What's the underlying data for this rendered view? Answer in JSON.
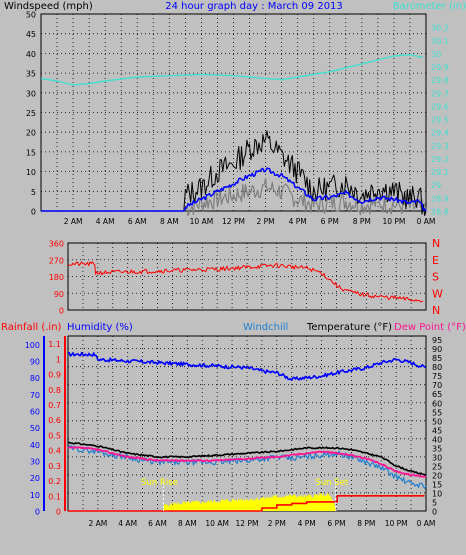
{
  "chart_data": [
    {
      "type": "line",
      "title": "24 hour graph day : March 09 2013",
      "ylabel": "Windspeed (mph)",
      "y2label": "Barometer (in)",
      "ylim": [
        0,
        50
      ],
      "y2lim": [
        28.8,
        30.3
      ],
      "yticks": [
        "0",
        "5",
        "10",
        "15",
        "20",
        "25",
        "30",
        "35",
        "40",
        "45",
        "50"
      ],
      "y2ticks": [
        "28.8",
        "28.9",
        "29",
        "29.1",
        "29.2",
        "29.3",
        "29.4",
        "29.5",
        "29.6",
        "29.7",
        "29.8",
        "29.9",
        "30",
        "30.1",
        "30.2"
      ],
      "xlim": [
        0,
        24
      ],
      "xticks": [
        {
          "h": 2,
          "label": "2 AM"
        },
        {
          "h": 4,
          "label": "4 AM"
        },
        {
          "h": 6,
          "label": "6 AM"
        },
        {
          "h": 8,
          "label": "8 AM"
        },
        {
          "h": 10,
          "label": "10 AM"
        },
        {
          "h": 12,
          "label": "12 PM"
        },
        {
          "h": 14,
          "label": "2 PM"
        },
        {
          "h": 16,
          "label": "4 PM"
        },
        {
          "h": 18,
          "label": "6 PM"
        },
        {
          "h": 20,
          "label": "8 PM"
        },
        {
          "h": 22,
          "label": "10 PM"
        },
        {
          "h": 24,
          "label": "0 AM"
        }
      ],
      "grid": true,
      "colors": {
        "gust": "#000000",
        "average": "#808080",
        "speed": "#0000ff",
        "barometer": "#40e0d0"
      },
      "series": [
        {
          "key": "barometer",
          "axis": "right",
          "x": [
            0,
            1,
            2,
            3,
            4,
            6,
            8,
            10,
            12,
            14,
            15,
            16,
            18,
            20,
            22,
            23,
            23.8
          ],
          "values": [
            29.81,
            29.79,
            29.76,
            29.77,
            29.79,
            29.82,
            29.83,
            29.84,
            29.83,
            29.81,
            29.8,
            29.82,
            29.86,
            29.92,
            29.98,
            29.99,
            29.97
          ]
        },
        {
          "key": "gust",
          "axis": "left",
          "x": [
            0,
            8.9,
            9.0,
            10,
            11,
            12,
            13,
            14,
            15,
            16,
            17,
            18,
            19,
            20,
            21,
            22,
            23,
            23.5,
            24
          ],
          "values": [
            0,
            0,
            4,
            6,
            10,
            12,
            16,
            18,
            14,
            10,
            5,
            6,
            7,
            4,
            6,
            5,
            3,
            4,
            0
          ]
        },
        {
          "key": "speed",
          "axis": "left",
          "x": [
            0,
            8.9,
            9.0,
            10,
            11,
            12,
            13,
            14,
            15,
            16,
            17,
            18,
            19,
            20,
            21,
            22,
            23,
            23.5,
            24
          ],
          "values": [
            0,
            0,
            1,
            3,
            5,
            7,
            9,
            10.5,
            9,
            6,
            3,
            3.5,
            4.5,
            2.5,
            3.5,
            3,
            2,
            2.5,
            0
          ]
        },
        {
          "key": "average",
          "axis": "left",
          "x": [
            0,
            8.9,
            9.0,
            10,
            11,
            12,
            13,
            14,
            15,
            16,
            17,
            18,
            19,
            20,
            21,
            22,
            23,
            23.5,
            24
          ],
          "values": [
            0,
            0,
            0.5,
            2,
            3,
            4,
            5,
            6,
            5,
            3,
            1.5,
            2,
            2.5,
            1.5,
            2,
            1.5,
            1,
            1,
            0
          ]
        }
      ]
    },
    {
      "type": "line",
      "ylim": [
        0,
        360
      ],
      "yticks": [
        "0",
        "90",
        "180",
        "270",
        "360"
      ],
      "directions": [
        "N",
        "W",
        "S",
        "E",
        "N"
      ],
      "xlim": [
        0,
        24
      ],
      "grid": true,
      "colors": {
        "direction": "#ff0000"
      },
      "series": [
        {
          "key": "direction",
          "x": [
            0,
            1.8,
            1.85,
            4,
            6,
            8,
            10,
            12,
            14,
            16,
            17,
            17.6,
            18.2,
            19,
            20,
            21,
            22,
            23,
            23.8
          ],
          "values": [
            247,
            247,
            200,
            205,
            210,
            215,
            220,
            230,
            240,
            225,
            200,
            160,
            120,
            95,
            80,
            70,
            65,
            55,
            50
          ]
        }
      ]
    },
    {
      "type": "line",
      "labels": {
        "rainfall": "Rainfall (.in)",
        "humidity": "Humidity (%)",
        "windchill": "Windchill",
        "temperature": "Temperature (°F)",
        "dewpoint": "Dew Point (°F)"
      },
      "humidity_ticks": [
        "0",
        "10",
        "20",
        "30",
        "40",
        "50",
        "60",
        "70",
        "80",
        "90",
        "100"
      ],
      "rain_ticks": [
        "0",
        "0.1",
        "0.2",
        "0.3",
        "0.4",
        "0.5",
        "0.6",
        "0.7",
        "0.8",
        "0.9",
        "1",
        "1.1"
      ],
      "temp_ticks": [
        "0",
        "5",
        "10",
        "15",
        "20",
        "25",
        "30",
        "35",
        "40",
        "45",
        "50",
        "55",
        "60",
        "65",
        "70",
        "75",
        "80",
        "85",
        "90",
        "95"
      ],
      "rain_lim": [
        0,
        1.15
      ],
      "temp_lim": [
        0,
        97
      ],
      "humidity_lim": [
        0,
        105
      ],
      "xlim": [
        0,
        24
      ],
      "grid": true,
      "annotations": [
        {
          "label": "Sun Rise",
          "h": 6.4
        },
        {
          "label": "Sun Set",
          "h": 17.95
        }
      ],
      "colors": {
        "humidity": "#0000ff",
        "temperature": "#000000",
        "windchill": "#2080d0",
        "dewpoint": "#ff1493",
        "rainfall": "#ff0000",
        "solar": "#ffff00",
        "rainfall_label": "#ff0000"
      },
      "series": [
        {
          "key": "humidity",
          "axis": "humidity",
          "x": [
            0,
            1.0,
            1.8,
            2.0,
            4,
            6,
            8,
            10,
            12,
            13,
            14,
            15,
            16,
            17,
            18,
            20,
            21,
            22,
            23,
            24
          ],
          "values": [
            94,
            94,
            94,
            91,
            90,
            89,
            88,
            87,
            86,
            84,
            83,
            79,
            80,
            81,
            83,
            86,
            89,
            91,
            89,
            86
          ]
        },
        {
          "key": "temperature",
          "axis": "temp",
          "x": [
            0,
            1,
            2,
            3,
            4,
            5,
            6,
            8,
            10,
            12,
            14,
            15,
            16,
            17,
            18,
            19,
            20,
            21,
            22,
            23,
            24
          ],
          "values": [
            38,
            37,
            36,
            34,
            32,
            31,
            30,
            30,
            31,
            32,
            33,
            34,
            35,
            35,
            35,
            34,
            32,
            30,
            25,
            22,
            20
          ]
        },
        {
          "key": "windchill",
          "axis": "temp",
          "x": [
            0,
            1,
            2,
            3,
            4,
            5,
            6,
            8,
            10,
            12,
            14,
            15,
            16,
            17,
            18,
            19,
            20,
            21,
            22,
            23,
            24
          ],
          "values": [
            35,
            34,
            33,
            31,
            30,
            28,
            27,
            27,
            27,
            28,
            30,
            29,
            30,
            31,
            32,
            30,
            27,
            24,
            19,
            15,
            14
          ]
        },
        {
          "key": "dewpoint",
          "axis": "temp",
          "x": [
            0,
            1,
            2,
            3,
            4,
            5,
            6,
            8,
            10,
            12,
            14,
            15,
            16,
            17,
            18,
            19,
            20,
            21,
            22,
            23,
            24
          ],
          "values": [
            35,
            35,
            34,
            32,
            30,
            29,
            28,
            28,
            28,
            29,
            30,
            31,
            32,
            33,
            32,
            31,
            29,
            26,
            22,
            20,
            19
          ]
        },
        {
          "key": "rainfall",
          "axis": "rain",
          "x": [
            0,
            12,
            13,
            14,
            15,
            16,
            18,
            18.05,
            23.9
          ],
          "values": [
            0,
            0,
            0.02,
            0.04,
            0.05,
            0.06,
            0.06,
            0.1,
            0.1
          ]
        },
        {
          "key": "solar",
          "axis": "temp",
          "x": [
            6.4,
            7,
            8,
            9,
            10,
            11,
            12,
            13,
            14,
            15,
            16,
            17,
            17.5,
            17.95
          ],
          "values": [
            3,
            4,
            4.5,
            5,
            5.5,
            6,
            6.5,
            7,
            8,
            8.5,
            8,
            9,
            9,
            3
          ]
        }
      ]
    }
  ]
}
